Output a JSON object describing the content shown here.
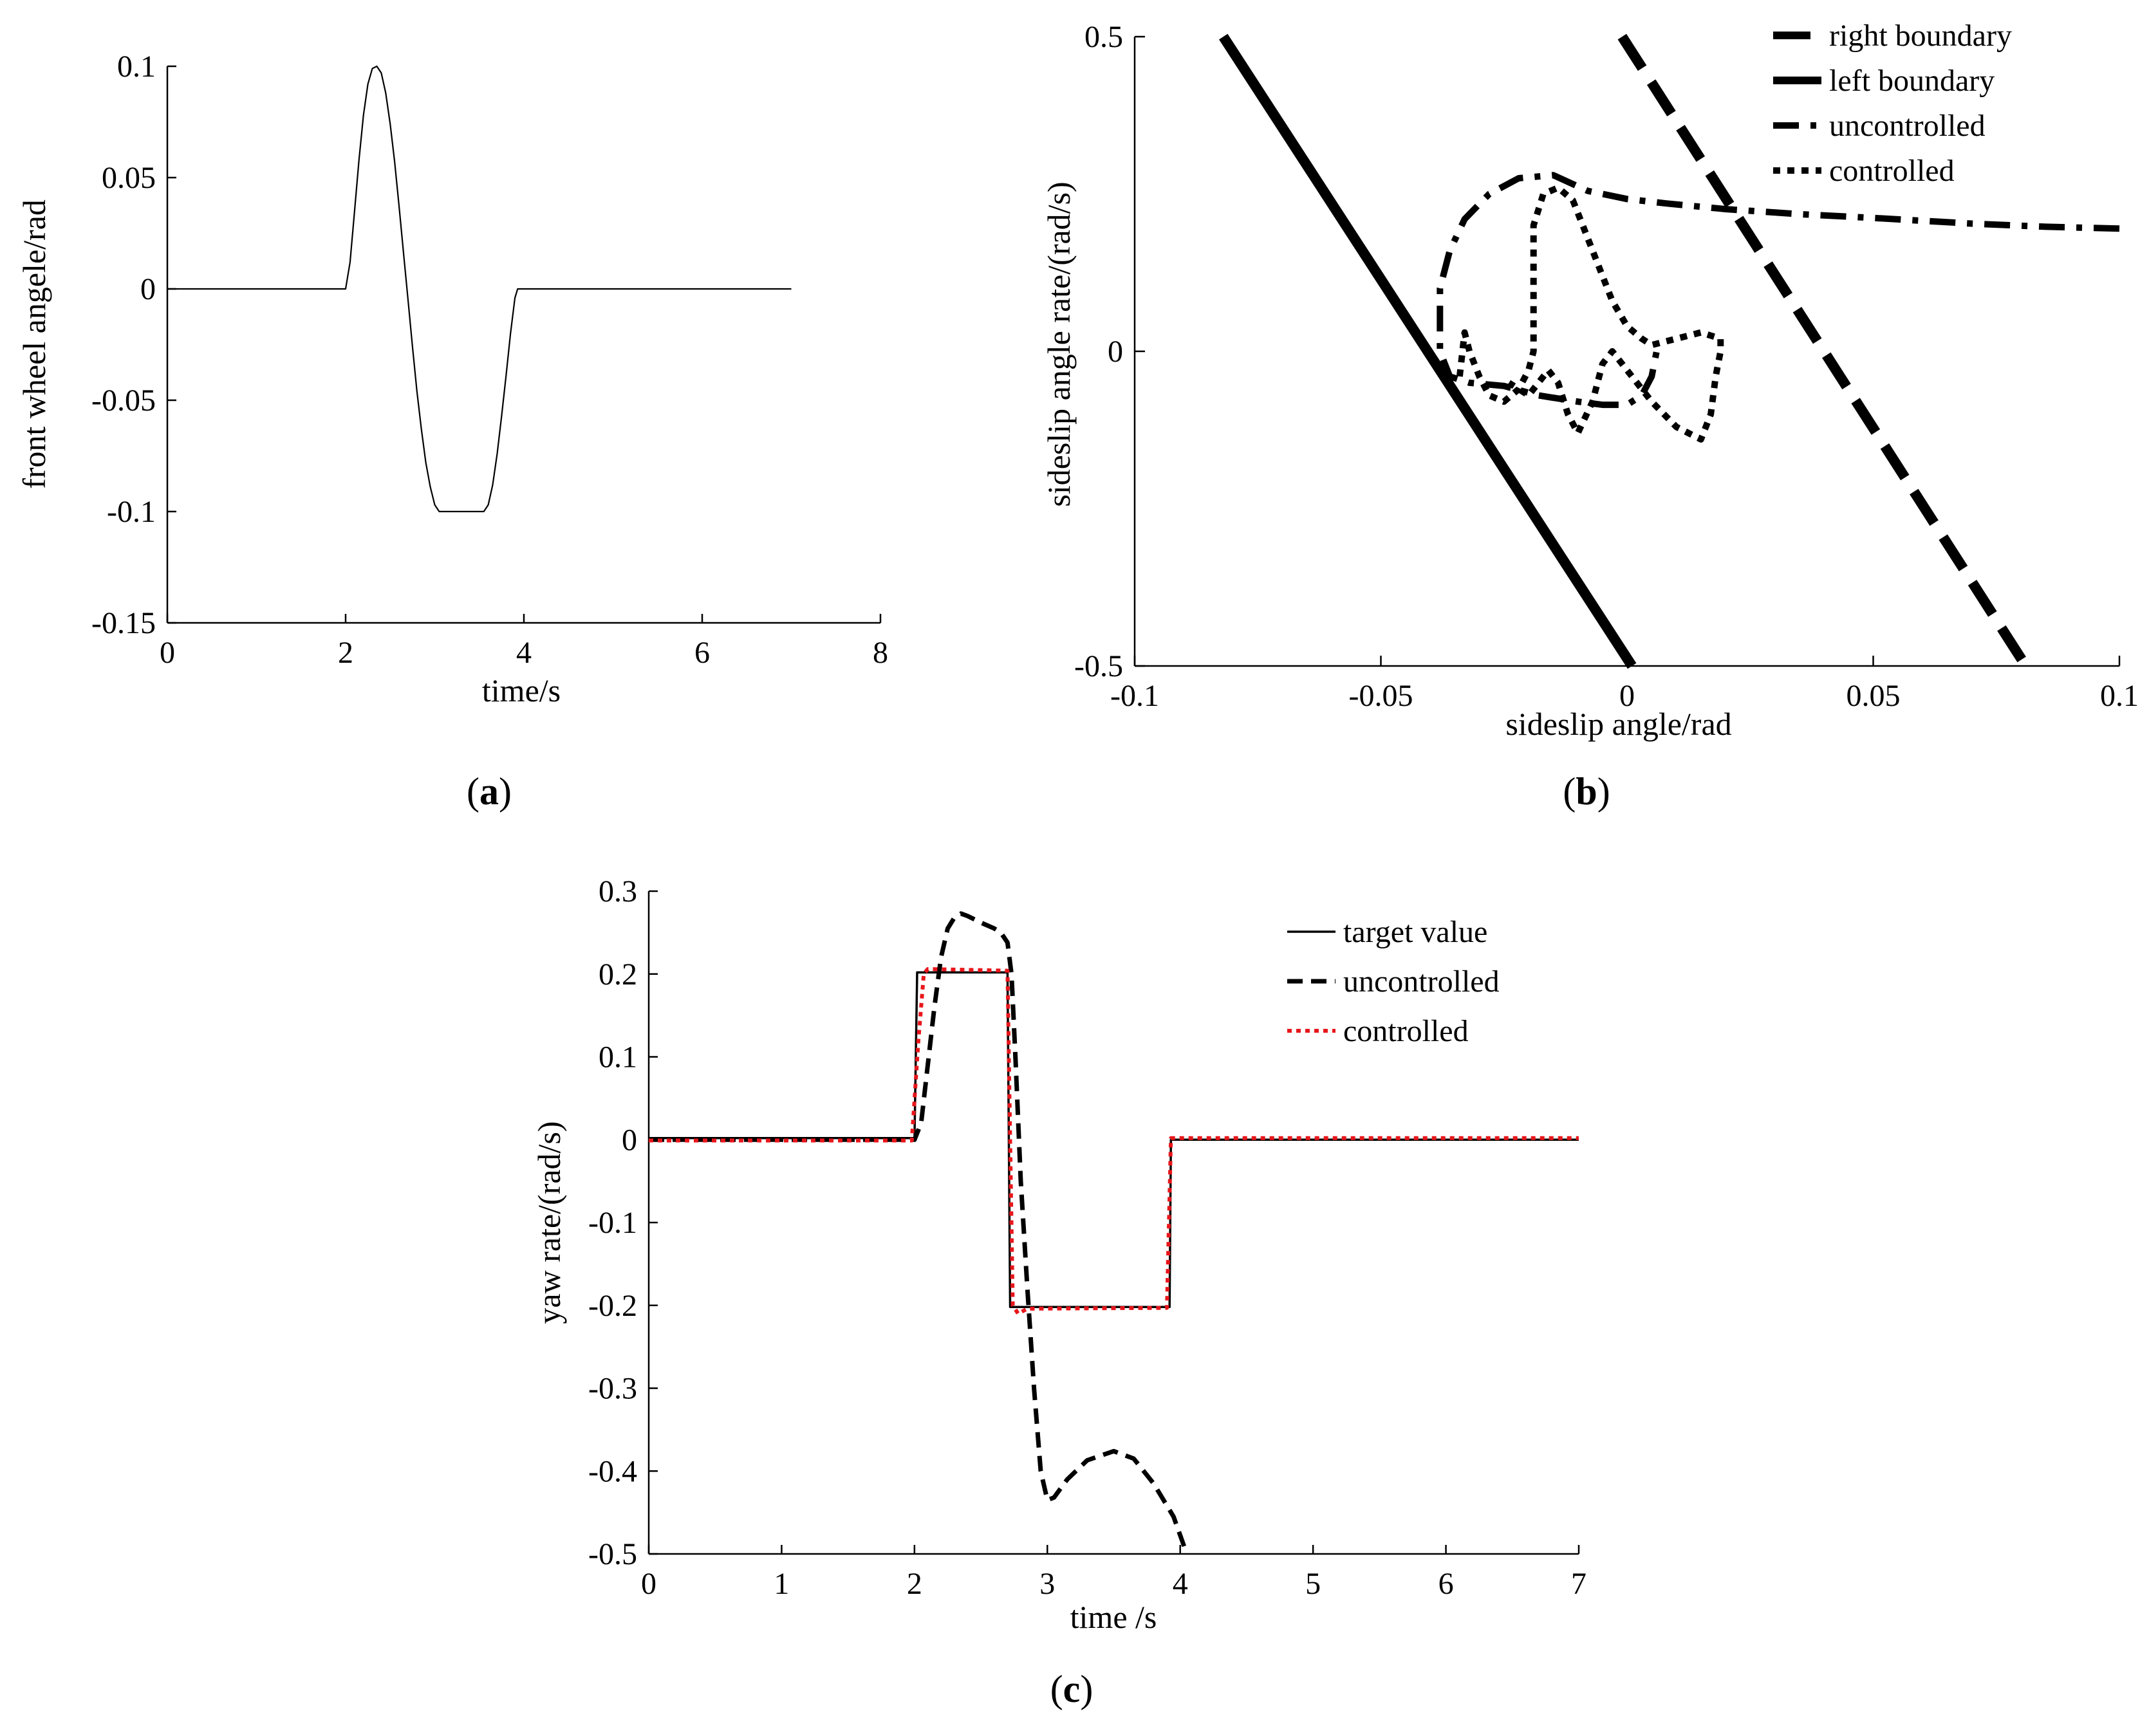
{
  "chart_data": [
    {
      "id": "a",
      "panel_label": "a",
      "type": "line",
      "xlabel": "time/s",
      "ylabel": "front wheel angele/rad",
      "xlim": [
        0,
        8
      ],
      "ylim": [
        -0.15,
        0.1
      ],
      "xticks": [
        0,
        2,
        4,
        6,
        8
      ],
      "xtick_labels": [
        "0",
        "2",
        "4",
        "6",
        "8"
      ],
      "yticks": [
        -0.15,
        -0.1,
        -0.05,
        0,
        0.05,
        0.1
      ],
      "ytick_labels": [
        "-0.15",
        "-0.1",
        "-0.05",
        "0",
        "0.05",
        "0.1"
      ],
      "grid": false,
      "series": [
        {
          "style": "solid",
          "color": "#000000",
          "points": [
            [
              0,
              0
            ],
            [
              2,
              0
            ],
            [
              2.05,
              0.012
            ],
            [
              2.1,
              0.035
            ],
            [
              2.15,
              0.058
            ],
            [
              2.2,
              0.078
            ],
            [
              2.25,
              0.092
            ],
            [
              2.3,
              0.099
            ],
            [
              2.35,
              0.1
            ],
            [
              2.4,
              0.097
            ],
            [
              2.45,
              0.088
            ],
            [
              2.5,
              0.074
            ],
            [
              2.55,
              0.057
            ],
            [
              2.6,
              0.037
            ],
            [
              2.65,
              0.016
            ],
            [
              2.7,
              -0.005
            ],
            [
              2.75,
              -0.026
            ],
            [
              2.8,
              -0.046
            ],
            [
              2.85,
              -0.063
            ],
            [
              2.9,
              -0.078
            ],
            [
              2.95,
              -0.089
            ],
            [
              3.0,
              -0.097
            ],
            [
              3.05,
              -0.1
            ],
            [
              3.55,
              -0.1
            ],
            [
              3.6,
              -0.097
            ],
            [
              3.65,
              -0.088
            ],
            [
              3.7,
              -0.074
            ],
            [
              3.75,
              -0.057
            ],
            [
              3.8,
              -0.039
            ],
            [
              3.85,
              -0.02
            ],
            [
              3.9,
              -0.004
            ],
            [
              3.93,
              0
            ],
            [
              7,
              0
            ]
          ]
        }
      ]
    },
    {
      "id": "b",
      "panel_label": "b",
      "type": "line",
      "xlabel": "sideslip angle/rad",
      "ylabel": "sideslip angle rate/(rad/s)",
      "xlim": [
        -0.1,
        0.1
      ],
      "ylim": [
        -0.5,
        0.5
      ],
      "xticks": [
        -0.1,
        -0.05,
        0,
        0.05,
        0.1
      ],
      "xtick_labels": [
        "-0.1",
        "-0.05",
        "0",
        "0.05",
        "0.1"
      ],
      "yticks": [
        -0.5,
        0,
        0.5
      ],
      "ytick_labels": [
        "-0.5",
        "0",
        "0.5"
      ],
      "grid": false,
      "legend_position": "top-right",
      "series": [
        {
          "name": "right boundary",
          "style": "dashed",
          "color": "#000000",
          "points": [
            [
              -0.001,
              0.5
            ],
            [
              0.081,
              -0.5
            ]
          ]
        },
        {
          "name": "left boundary",
          "style": "solid",
          "color": "#000000",
          "points": [
            [
              -0.082,
              0.5
            ],
            [
              0.001,
              -0.5
            ]
          ]
        },
        {
          "name": "uncontrolled",
          "style": "dashdot",
          "color": "#000000",
          "points": [
            [
              0.1,
              0.195
            ],
            [
              0.085,
              0.198
            ],
            [
              0.07,
              0.203
            ],
            [
              0.05,
              0.212
            ],
            [
              0.035,
              0.218
            ],
            [
              0.02,
              0.226
            ],
            [
              0.008,
              0.235
            ],
            [
              0.0,
              0.242
            ],
            [
              -0.008,
              0.255
            ],
            [
              -0.015,
              0.28
            ],
            [
              -0.022,
              0.275
            ],
            [
              -0.028,
              0.25
            ],
            [
              -0.033,
              0.21
            ],
            [
              -0.036,
              0.16
            ],
            [
              -0.038,
              0.1
            ],
            [
              -0.038,
              0.05
            ],
            [
              -0.038,
              0.0
            ],
            [
              -0.036,
              -0.04
            ],
            [
              -0.032,
              -0.05
            ],
            [
              -0.025,
              -0.055
            ],
            [
              -0.018,
              -0.07
            ],
            [
              -0.01,
              -0.08
            ],
            [
              -0.005,
              -0.085
            ],
            [
              0.0,
              -0.085
            ],
            [
              0.003,
              -0.07
            ],
            [
              0.005,
              -0.04
            ],
            [
              0.006,
              0.0
            ]
          ]
        },
        {
          "name": "controlled",
          "style": "dotted",
          "color": "#000000",
          "points": [
            [
              -0.034,
              -0.04
            ],
            [
              -0.033,
              0.03
            ],
            [
              -0.032,
              0.0
            ],
            [
              -0.03,
              -0.04
            ],
            [
              -0.028,
              -0.07
            ],
            [
              -0.025,
              -0.08
            ],
            [
              -0.022,
              -0.06
            ],
            [
              -0.02,
              -0.03
            ],
            [
              -0.019,
              0.0
            ],
            [
              -0.019,
              0.05
            ],
            [
              -0.019,
              0.2
            ],
            [
              -0.017,
              0.25
            ],
            [
              -0.014,
              0.26
            ],
            [
              -0.011,
              0.24
            ],
            [
              -0.009,
              0.2
            ],
            [
              -0.006,
              0.14
            ],
            [
              -0.003,
              0.08
            ],
            [
              0.0,
              0.04
            ],
            [
              0.003,
              0.02
            ],
            [
              0.005,
              0.01
            ],
            [
              0.01,
              0.02
            ],
            [
              0.015,
              0.03
            ],
            [
              0.019,
              0.02
            ],
            [
              0.019,
              0.0
            ],
            [
              0.018,
              -0.04
            ],
            [
              0.017,
              -0.1
            ],
            [
              0.015,
              -0.14
            ],
            [
              0.01,
              -0.12
            ],
            [
              0.005,
              -0.08
            ],
            [
              0.0,
              -0.03
            ],
            [
              -0.003,
              0.0
            ],
            [
              -0.005,
              -0.02
            ],
            [
              -0.007,
              -0.08
            ],
            [
              -0.01,
              -0.13
            ],
            [
              -0.012,
              -0.1
            ],
            [
              -0.014,
              -0.05
            ],
            [
              -0.016,
              -0.03
            ],
            [
              -0.018,
              -0.05
            ],
            [
              -0.02,
              -0.07
            ],
            [
              -0.022,
              -0.06
            ],
            [
              -0.024,
              -0.05
            ]
          ]
        }
      ]
    },
    {
      "id": "c",
      "panel_label": "c",
      "type": "line",
      "xlabel": "time /s",
      "ylabel": "yaw rate/(rad/s)",
      "xlim": [
        0,
        7
      ],
      "ylim": [
        -0.5,
        0.3
      ],
      "xticks": [
        0,
        1,
        2,
        3,
        4,
        5,
        6,
        7
      ],
      "xtick_labels": [
        "0",
        "1",
        "2",
        "3",
        "4",
        "5",
        "6",
        "7"
      ],
      "yticks": [
        -0.5,
        -0.4,
        -0.3,
        -0.2,
        -0.1,
        0,
        0.1,
        0.2,
        0.3
      ],
      "ytick_labels": [
        "-0.5",
        "-0.4",
        "-0.3",
        "-0.2",
        "-0.1",
        "0",
        "0.1",
        "0.2",
        "0.3"
      ],
      "grid": false,
      "legend_position": "top-right",
      "series": [
        {
          "name": "target value",
          "style": "solid",
          "color": "#000000",
          "points": [
            [
              0,
              0.002
            ],
            [
              2.0,
              0.002
            ],
            [
              2.02,
              0.202
            ],
            [
              2.7,
              0.202
            ],
            [
              2.72,
              -0.202
            ],
            [
              3.92,
              -0.202
            ],
            [
              3.93,
              0.0
            ],
            [
              7,
              0.0
            ]
          ]
        },
        {
          "name": "uncontrolled",
          "style": "dashed",
          "color": "#000000",
          "points": [
            [
              0,
              0.0
            ],
            [
              2.0,
              0.0
            ],
            [
              2.05,
              0.02
            ],
            [
              2.1,
              0.09
            ],
            [
              2.15,
              0.16
            ],
            [
              2.2,
              0.22
            ],
            [
              2.25,
              0.255
            ],
            [
              2.3,
              0.268
            ],
            [
              2.35,
              0.273
            ],
            [
              2.4,
              0.27
            ],
            [
              2.5,
              0.262
            ],
            [
              2.6,
              0.255
            ],
            [
              2.65,
              0.25
            ],
            [
              2.7,
              0.238
            ],
            [
              2.73,
              0.2
            ],
            [
              2.76,
              0.1
            ],
            [
              2.8,
              -0.05
            ],
            [
              2.85,
              -0.18
            ],
            [
              2.9,
              -0.3
            ],
            [
              2.95,
              -0.4
            ],
            [
              3.0,
              -0.435
            ],
            [
              3.05,
              -0.432
            ],
            [
              3.15,
              -0.41
            ],
            [
              3.3,
              -0.387
            ],
            [
              3.5,
              -0.376
            ],
            [
              3.65,
              -0.385
            ],
            [
              3.8,
              -0.415
            ],
            [
              3.95,
              -0.455
            ],
            [
              4.05,
              -0.5
            ]
          ]
        },
        {
          "name": "controlled",
          "style": "dotted",
          "color": "#e8161b",
          "points": [
            [
              0,
              -0.001
            ],
            [
              1.98,
              -0.001
            ],
            [
              2.03,
              0.12
            ],
            [
              2.07,
              0.2
            ],
            [
              2.1,
              0.206
            ],
            [
              2.7,
              0.204
            ],
            [
              2.72,
              0.0
            ],
            [
              2.74,
              -0.2
            ],
            [
              2.78,
              -0.21
            ],
            [
              2.85,
              -0.204
            ],
            [
              3.9,
              -0.203
            ],
            [
              3.93,
              0.002
            ],
            [
              7,
              0.002
            ]
          ]
        }
      ]
    }
  ]
}
